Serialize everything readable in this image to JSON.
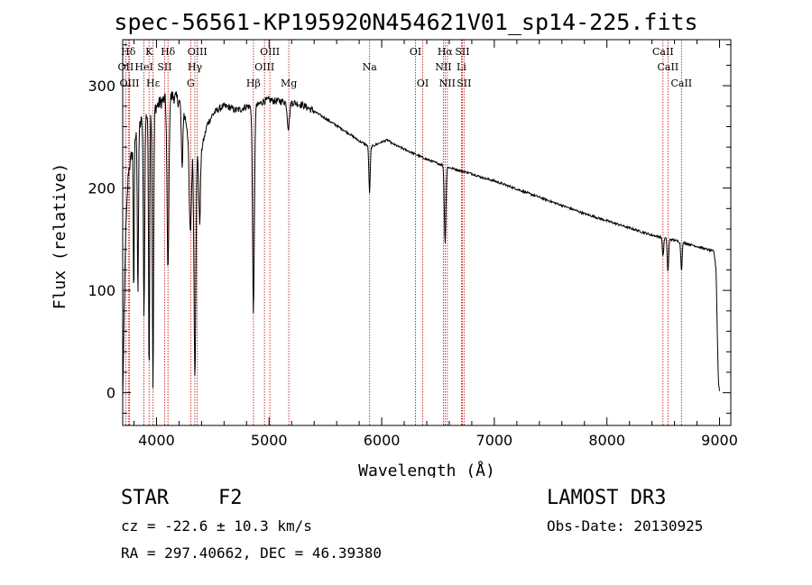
{
  "title": "spec-56561-KP195920N454621V01_sp14-225.fits",
  "info": {
    "class_label": "STAR",
    "subclass": "F2",
    "survey": "LAMOST DR3",
    "redshift_line": "cz = -22.6 ± 10.3 km/s",
    "obs_date_line": "Obs-Date: 20130925",
    "coords_line": "RA = 297.40662, DEC =  46.39380"
  },
  "colors": {
    "spectrum": "#000000",
    "line_marker": "#c00000",
    "axis": "#000000"
  },
  "chart_data": {
    "type": "line",
    "title": "spec-56561-KP195920N454621V01_sp14-225.fits",
    "xlabel": "Wavelength (Å)",
    "ylabel": "Flux (relative)",
    "xlim": [
      3700,
      9100
    ],
    "ylim": [
      -32,
      345
    ],
    "xticks": [
      4000,
      5000,
      6000,
      7000,
      8000,
      9000
    ],
    "yticks": [
      0,
      100,
      200,
      300
    ],
    "x_minor_step": 200,
    "y_minor_step": 20,
    "continuum": [
      [
        3700,
        -5
      ],
      [
        3725,
        150
      ],
      [
        3750,
        215
      ],
      [
        3800,
        245
      ],
      [
        3850,
        262
      ],
      [
        3900,
        270
      ],
      [
        3950,
        275
      ],
      [
        4000,
        280
      ],
      [
        4050,
        285
      ],
      [
        4100,
        288
      ],
      [
        4150,
        290
      ],
      [
        4200,
        285
      ],
      [
        4250,
        270
      ],
      [
        4300,
        250
      ],
      [
        4350,
        232
      ],
      [
        4400,
        238
      ],
      [
        4450,
        262
      ],
      [
        4500,
        272
      ],
      [
        4550,
        277
      ],
      [
        4600,
        280
      ],
      [
        4650,
        279
      ],
      [
        4700,
        276
      ],
      [
        4750,
        277
      ],
      [
        4800,
        280
      ],
      [
        4850,
        279
      ],
      [
        4900,
        281
      ],
      [
        4950,
        285
      ],
      [
        5000,
        286
      ],
      [
        5050,
        285
      ],
      [
        5100,
        285
      ],
      [
        5150,
        284
      ],
      [
        5200,
        284
      ],
      [
        5300,
        281
      ],
      [
        5400,
        275
      ],
      [
        5500,
        268
      ],
      [
        5600,
        261
      ],
      [
        5700,
        254
      ],
      [
        5800,
        246
      ],
      [
        5900,
        240
      ],
      [
        6000,
        245
      ],
      [
        6050,
        247
      ],
      [
        6100,
        243
      ],
      [
        6200,
        238
      ],
      [
        6300,
        233
      ],
      [
        6400,
        228
      ],
      [
        6500,
        224
      ],
      [
        6600,
        220
      ],
      [
        6700,
        217
      ],
      [
        6800,
        214
      ],
      [
        6900,
        210
      ],
      [
        7000,
        207
      ],
      [
        7200,
        199
      ],
      [
        7400,
        191
      ],
      [
        7600,
        183
      ],
      [
        7800,
        175
      ],
      [
        8000,
        168
      ],
      [
        8200,
        161
      ],
      [
        8400,
        154
      ],
      [
        8600,
        149
      ],
      [
        8800,
        143
      ],
      [
        8950,
        138
      ],
      [
        8970,
        120
      ],
      [
        8980,
        60
      ],
      [
        8990,
        10
      ],
      [
        9000,
        2
      ]
    ],
    "absorption_features": [
      {
        "center": 3798,
        "depth": 150,
        "width": 4
      },
      {
        "center": 3835,
        "depth": 160,
        "width": 5
      },
      {
        "center": 3889,
        "depth": 190,
        "width": 6
      },
      {
        "center": 3934,
        "depth": 255,
        "width": 5
      },
      {
        "center": 3969,
        "depth": 272,
        "width": 6
      },
      {
        "center": 4102,
        "depth": 170,
        "width": 8
      },
      {
        "center": 4227,
        "depth": 60,
        "width": 6
      },
      {
        "center": 4300,
        "depth": 95,
        "width": 10
      },
      {
        "center": 4341,
        "depth": 215,
        "width": 8
      },
      {
        "center": 4383,
        "depth": 70,
        "width": 7
      },
      {
        "center": 4861,
        "depth": 200,
        "width": 8
      },
      {
        "center": 5172,
        "depth": 25,
        "width": 10
      },
      {
        "center": 5892,
        "depth": 45,
        "width": 6
      },
      {
        "center": 6563,
        "depth": 75,
        "width": 7
      },
      {
        "center": 8498,
        "depth": 18,
        "width": 6
      },
      {
        "center": 8542,
        "depth": 33,
        "width": 6
      },
      {
        "center": 8662,
        "depth": 27,
        "width": 6
      }
    ],
    "line_markers": [
      {
        "label": "Hδ",
        "wavelength": 3750,
        "row": 1
      },
      {
        "label": "K",
        "wavelength": 3934,
        "row": 1
      },
      {
        "label": "Hδ",
        "wavelength": 4102,
        "row": 1
      },
      {
        "label": "OIII",
        "wavelength": 4363,
        "row": 1
      },
      {
        "label": "OIII",
        "wavelength": 5007,
        "row": 1
      },
      {
        "label": "OI",
        "wavelength": 6300,
        "row": 1
      },
      {
        "label": "Hα",
        "wavelength": 6563,
        "row": 1
      },
      {
        "label": "SII",
        "wavelength": 6716,
        "row": 1
      },
      {
        "label": "CaII",
        "wavelength": 8498,
        "row": 1
      },
      {
        "label": "OII",
        "wavelength": 3727,
        "row": 2
      },
      {
        "label": "HeI",
        "wavelength": 3889,
        "row": 2
      },
      {
        "label": "SII",
        "wavelength": 4072,
        "row": 2
      },
      {
        "label": "Hγ",
        "wavelength": 4341,
        "row": 2
      },
      {
        "label": "OIII",
        "wavelength": 4959,
        "row": 2
      },
      {
        "label": "Na",
        "wavelength": 5893,
        "row": 2
      },
      {
        "label": "NII",
        "wavelength": 6548,
        "row": 2
      },
      {
        "label": "Li",
        "wavelength": 6708,
        "row": 2
      },
      {
        "label": "CaII",
        "wavelength": 8542,
        "row": 2
      },
      {
        "label": "OIII",
        "wavelength": 3760,
        "row": 3
      },
      {
        "label": "Hε",
        "wavelength": 3970,
        "row": 3
      },
      {
        "label": "G",
        "wavelength": 4304,
        "row": 3
      },
      {
        "label": "Hβ",
        "wavelength": 4861,
        "row": 3
      },
      {
        "label": "Mg",
        "wavelength": 5175,
        "row": 3
      },
      {
        "label": "OI",
        "wavelength": 6364,
        "row": 3
      },
      {
        "label": "NII",
        "wavelength": 6583,
        "row": 3
      },
      {
        "label": "SII",
        "wavelength": 6731,
        "row": 3
      },
      {
        "label": "CaII",
        "wavelength": 8662,
        "row": 3
      }
    ]
  }
}
